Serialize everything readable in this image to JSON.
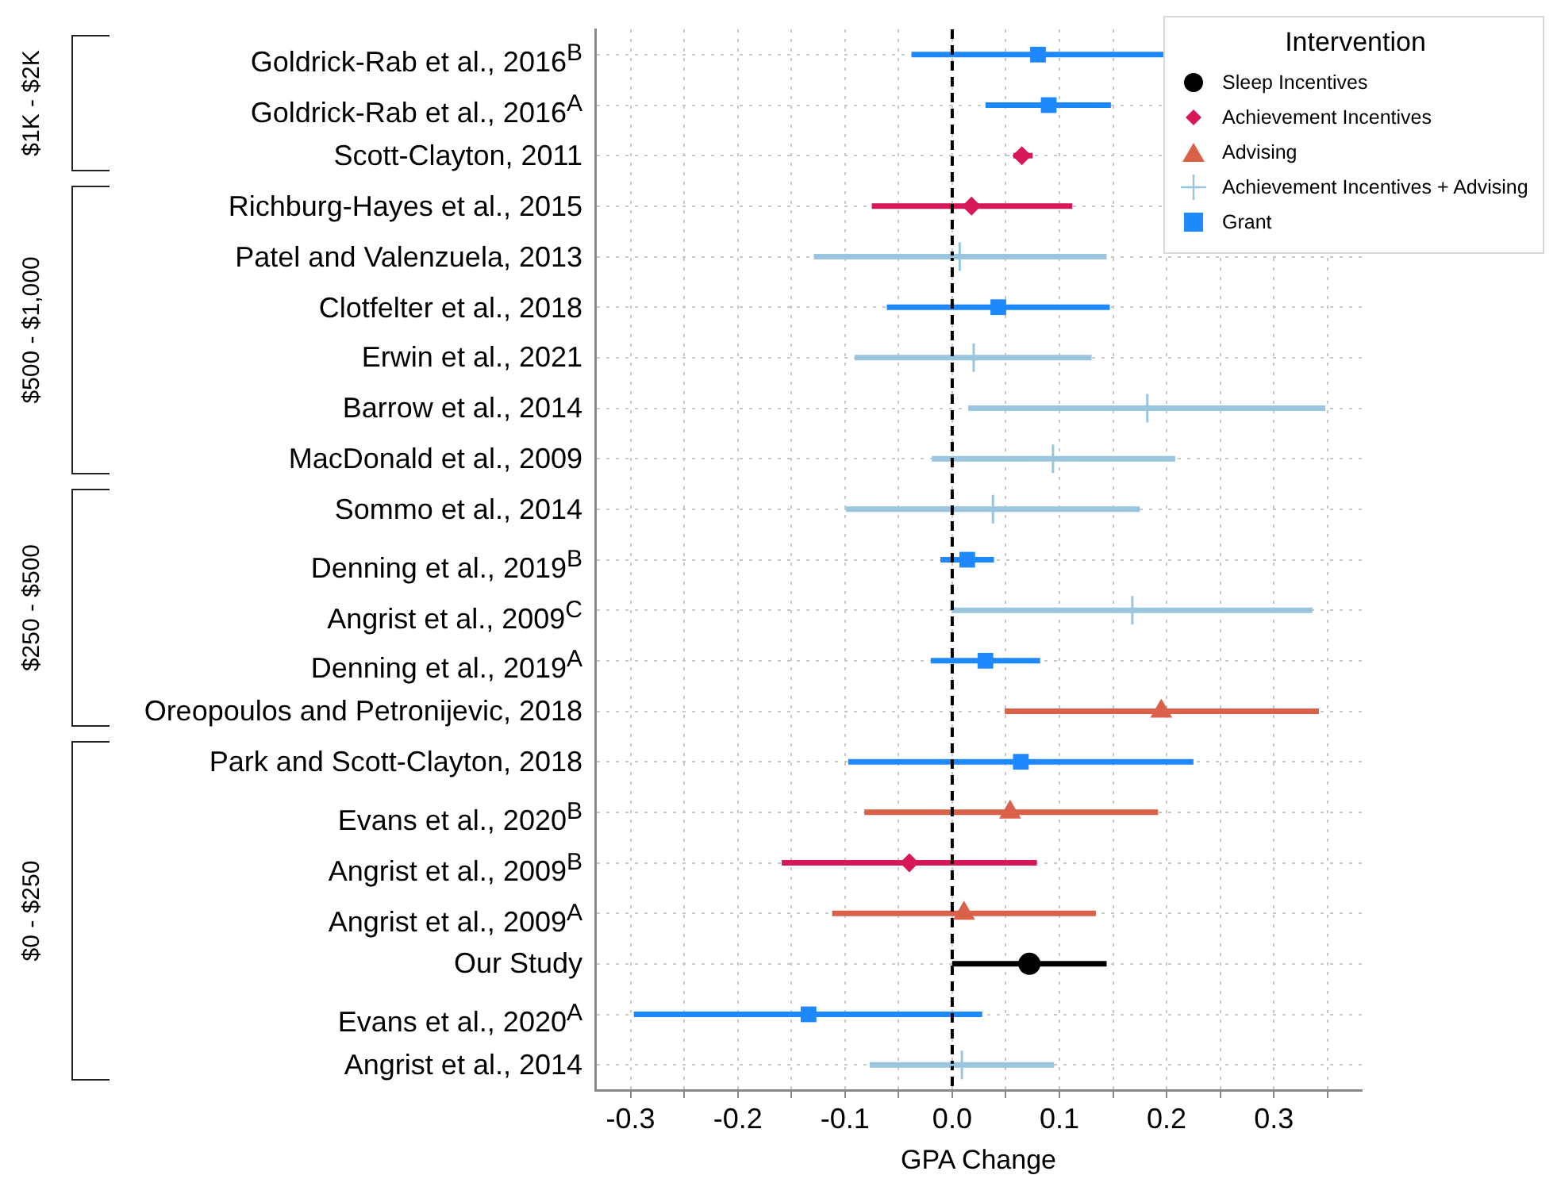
{
  "chart_data": {
    "type": "scatter",
    "orientation": "horizontal",
    "xlabel": "GPA Change",
    "legend_title": "Intervention",
    "legend": "top right",
    "grid": true,
    "xlim": [
      -0.333,
      0.382
    ],
    "xticks": [
      -0.3,
      {
        "value": -0.25,
        "label": null
      },
      -0.2,
      {
        "value": -0.15,
        "label": null
      },
      -0.1,
      {
        "value": -0.05,
        "label": null
      },
      {
        "value": 0,
        "label": "0.0"
      },
      {
        "value": 0.05,
        "label": null
      },
      0.1,
      {
        "value": 0.15,
        "label": null
      },
      0.2,
      {
        "value": 0.25,
        "label": null
      },
      0.3,
      {
        "value": 0.35,
        "label": null
      }
    ],
    "categories": [
      "Goldrick-Rab et al., 2016$^{B}$",
      "Goldrick-Rab et al., 2016$^{A}$",
      "Scott-Clayton, 2011",
      "Richburg-Hayes et al., 2015",
      "Patel and Valenzuela, 2013",
      "Clotfelter et al., 2018",
      "Erwin et al., 2021",
      "Barrow et al., 2014",
      "MacDonald et al., 2009",
      "Sommo et al., 2014",
      "Denning et al., 2019$^{B}$",
      "Angrist et al., 2009$^{C}$",
      "Denning et al., 2019$^{A}$",
      "Oreopoulos and Petronijevic, 2018",
      "Park and Scott-Clayton, 2018",
      "Evans et al., 2020$^{B}$",
      "Angrist et al., 2009$^{B}$",
      "Angrist et al., 2009$^{A}$",
      "Our Study",
      "Evans et al., 2020$^{A}$",
      "Angrist et al., 2014"
    ],
    "annotations": [
      "$1K - $2K",
      "$500 - $1,000",
      "$250 - $500",
      "$0 - $250"
    ],
    "ref_lines": [
      {
        "axis": "x",
        "value": 0,
        "color": "#000000",
        "line_style": "dashed"
      }
    ],
    "series": [
      {
        "name": "Sleep Incentives",
        "color": "#000000",
        "marker": "circle",
        "values": [
          null,
          null,
          null,
          null,
          null,
          null,
          null,
          null,
          null,
          null,
          null,
          null,
          null,
          null,
          null,
          null,
          null,
          null,
          0.072,
          null,
          null
        ],
        "errors": [
          null,
          null,
          null,
          null,
          null,
          null,
          null,
          null,
          null,
          null,
          null,
          null,
          null,
          null,
          null,
          null,
          null,
          null,
          [
            0.0,
            0.144
          ],
          null,
          null
        ]
      },
      {
        "name": "Achievement Incentives",
        "color": "#d6175a",
        "marker": "diamond",
        "values": [
          null,
          null,
          0.065,
          0.018,
          null,
          null,
          null,
          null,
          null,
          null,
          null,
          null,
          null,
          null,
          null,
          null,
          -0.04,
          null,
          null,
          null,
          null
        ],
        "errors": [
          null,
          null,
          [
            0.057,
            0.075
          ],
          [
            -0.075,
            0.112
          ],
          null,
          null,
          null,
          null,
          null,
          null,
          null,
          null,
          null,
          null,
          null,
          null,
          [
            -0.159,
            0.079
          ],
          null,
          null,
          null,
          null
        ]
      },
      {
        "name": "Advising",
        "color": "#d9614a",
        "marker": "triangle",
        "values": [
          null,
          null,
          null,
          null,
          null,
          null,
          null,
          null,
          null,
          null,
          null,
          null,
          null,
          0.195,
          null,
          0.054,
          null,
          0.011,
          null,
          null,
          null
        ],
        "errors": [
          null,
          null,
          null,
          null,
          null,
          null,
          null,
          null,
          null,
          null,
          null,
          null,
          null,
          [
            0.049,
            0.342
          ],
          null,
          [
            -0.082,
            0.192
          ],
          null,
          [
            -0.112,
            0.134
          ],
          null,
          null,
          null
        ]
      },
      {
        "name": "Achievement Incentives + Advising",
        "color": "#99c6de",
        "marker": "cross",
        "values": [
          null,
          null,
          null,
          null,
          0.007,
          null,
          0.02,
          0.182,
          0.094,
          0.038,
          null,
          0.168,
          null,
          null,
          null,
          null,
          null,
          null,
          null,
          null,
          0.009
        ],
        "errors": [
          null,
          null,
          null,
          null,
          [
            -0.129,
            0.144
          ],
          null,
          [
            -0.091,
            0.13
          ],
          [
            0.015,
            0.348
          ],
          [
            -0.019,
            0.208
          ],
          [
            -0.099,
            0.175
          ],
          null,
          [
            0.0,
            0.336
          ],
          null,
          null,
          null,
          null,
          null,
          null,
          null,
          null,
          [
            -0.077,
            0.095
          ]
        ]
      },
      {
        "name": "Grant",
        "color": "#1e88ff",
        "marker": "square",
        "values": [
          0.08,
          0.09,
          null,
          null,
          null,
          0.043,
          null,
          null,
          null,
          null,
          0.014,
          null,
          0.031,
          null,
          0.064,
          null,
          null,
          null,
          null,
          -0.134,
          null
        ],
        "errors": [
          [
            -0.038,
            0.198
          ],
          [
            0.031,
            0.148
          ],
          null,
          null,
          null,
          [
            -0.061,
            0.147
          ],
          null,
          null,
          null,
          null,
          [
            -0.011,
            0.039
          ],
          null,
          [
            -0.02,
            0.082
          ],
          null,
          [
            -0.097,
            0.225
          ],
          null,
          null,
          null,
          null,
          [
            -0.297,
            0.028
          ],
          null
        ]
      }
    ]
  }
}
